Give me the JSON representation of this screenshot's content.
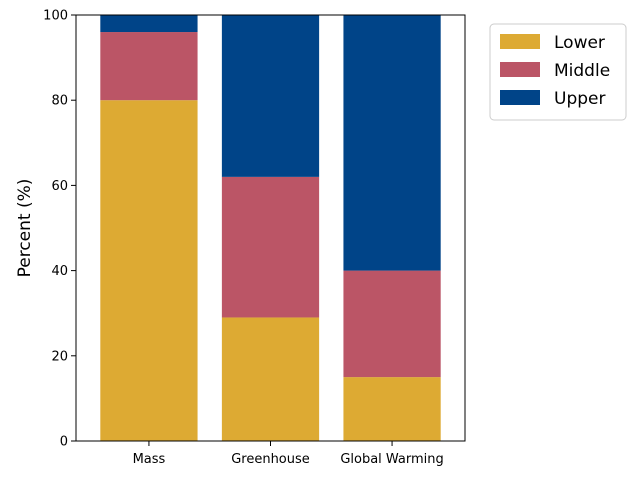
{
  "chart_data": {
    "type": "bar",
    "stacked": true,
    "categories": [
      "Mass",
      "Greenhouse",
      "Global Warming"
    ],
    "series": [
      {
        "name": "Lower",
        "values": [
          80,
          29,
          15
        ],
        "color": "#DDAA33"
      },
      {
        "name": "Middle",
        "values": [
          16,
          33,
          25
        ],
        "color": "#BB5566"
      },
      {
        "name": "Upper",
        "values": [
          4,
          38,
          60
        ],
        "color": "#004488"
      }
    ],
    "title": "",
    "xlabel": "",
    "ylabel": "Percent (%)",
    "ylim": [
      0,
      100
    ],
    "yticks": [
      0,
      20,
      40,
      60,
      80,
      100
    ],
    "grid": false,
    "legend": "outside-top-right"
  }
}
